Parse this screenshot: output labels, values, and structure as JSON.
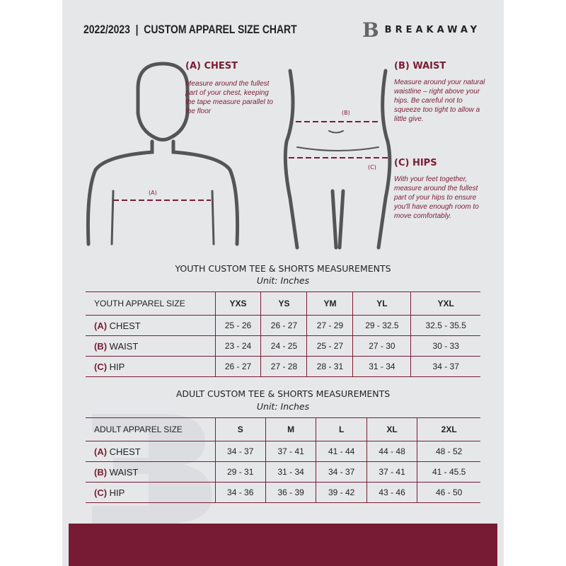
{
  "header": {
    "title": "2022/2023  |  CUSTOM APPAREL SIZE CHART",
    "brand": "BREAKAWAY",
    "logo_letter": "B"
  },
  "accent": "#7a1c33",
  "guide": {
    "chest": {
      "heading": "(A) CHEST",
      "text": "Measure around the fullest part of your chest, keeping the tape measure parallel to the floor",
      "marker": "(A)"
    },
    "waist": {
      "heading": "(B) WAIST",
      "text": "Measure around your natural waistline – right above your hips. Be careful not to squeeze too tight to allow a little give.",
      "marker": "(B)"
    },
    "hips": {
      "heading": "(C) HIPS",
      "text": "With your feet together, measure around the fullest part of your hips to ensure you'll have enough room to move comfortably.",
      "marker": "(C)"
    }
  },
  "youth": {
    "title": "YOUTH CUSTOM TEE & SHORTS MEASUREMENTS",
    "unit": "Unit: Inches",
    "header": [
      "YOUTH APPAREL SIZE",
      "YXS",
      "YS",
      "YM",
      "YL",
      "YXL"
    ],
    "rows": [
      {
        "key": "(A)",
        "label": "CHEST",
        "values": [
          "25 - 26",
          "26 - 27",
          "27 - 29",
          "29 - 32.5",
          "32.5 - 35.5"
        ]
      },
      {
        "key": "(B)",
        "label": "WAIST",
        "values": [
          "23 - 24",
          "24 - 25",
          "25 - 27",
          "27 - 30",
          "30 - 33"
        ]
      },
      {
        "key": "(C)",
        "label": "HIP",
        "values": [
          "26 - 27",
          "27 - 28",
          "28 - 31",
          "31 - 34",
          "34 - 37"
        ]
      }
    ]
  },
  "adult": {
    "title": "ADULT CUSTOM TEE & SHORTS MEASUREMENTS",
    "unit": "Unit: Inches",
    "header": [
      "ADULT APPAREL SIZE",
      "S",
      "M",
      "L",
      "XL",
      "2XL"
    ],
    "rows": [
      {
        "key": "(A)",
        "label": "CHEST",
        "values": [
          "34 - 37",
          "37 - 41",
          "41 - 44",
          "44 - 48",
          "48 - 52"
        ]
      },
      {
        "key": "(B)",
        "label": "WAIST",
        "values": [
          "29 - 31",
          "31 - 34",
          "34 - 37",
          "37 - 41",
          "41 - 45.5"
        ]
      },
      {
        "key": "(C)",
        "label": "HIP",
        "values": [
          "34 - 36",
          "36 - 39",
          "39 - 42",
          "43 - 46",
          "46 - 50"
        ]
      }
    ]
  }
}
